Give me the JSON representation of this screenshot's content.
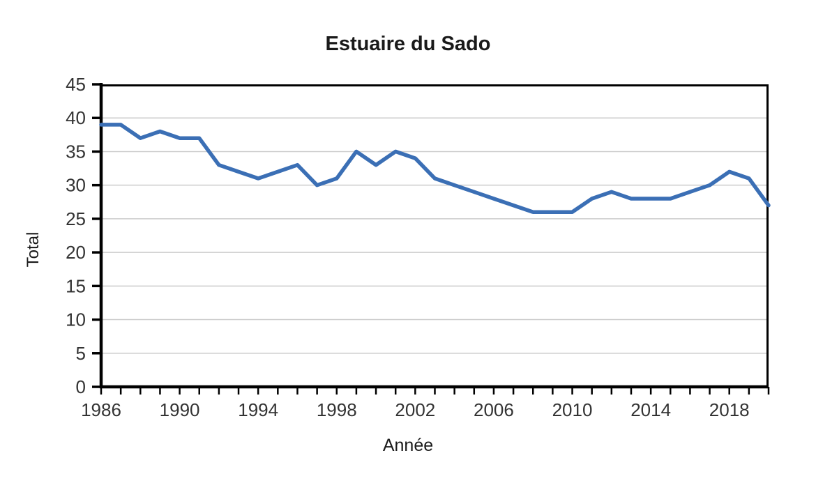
{
  "page": {
    "background": "#ffffff"
  },
  "chart_data": {
    "type": "line",
    "title": "Estuaire du Sado",
    "xlabel": "Année",
    "ylabel": "Total",
    "x": [
      1986,
      1987,
      1988,
      1989,
      1990,
      1991,
      1992,
      1993,
      1994,
      1995,
      1996,
      1997,
      1998,
      1999,
      2000,
      2001,
      2002,
      2003,
      2004,
      2005,
      2006,
      2007,
      2008,
      2009,
      2010,
      2011,
      2012,
      2013,
      2014,
      2015,
      2016,
      2017,
      2018,
      2019,
      2020
    ],
    "series": [
      {
        "name": "Total",
        "values": [
          39,
          39,
          37,
          38,
          37,
          37,
          33,
          32,
          31,
          32,
          33,
          30,
          31,
          35,
          33,
          35,
          34,
          31,
          30,
          29,
          28,
          27,
          26,
          26,
          26,
          28,
          29,
          28,
          28,
          28,
          29,
          30,
          32,
          31,
          27
        ]
      }
    ],
    "ylim": [
      0,
      45
    ],
    "y_tick_step": 5,
    "x_label_start": 1986,
    "x_label_step": 4,
    "x_minor_tick_step": 1,
    "grid": "horizontal",
    "legend": "none",
    "colors": {
      "line": "#3B6FB5",
      "grid": "#CBCBCB",
      "axis": "#000000",
      "tick_label": "#333333",
      "text": "#1A1A1A"
    }
  }
}
